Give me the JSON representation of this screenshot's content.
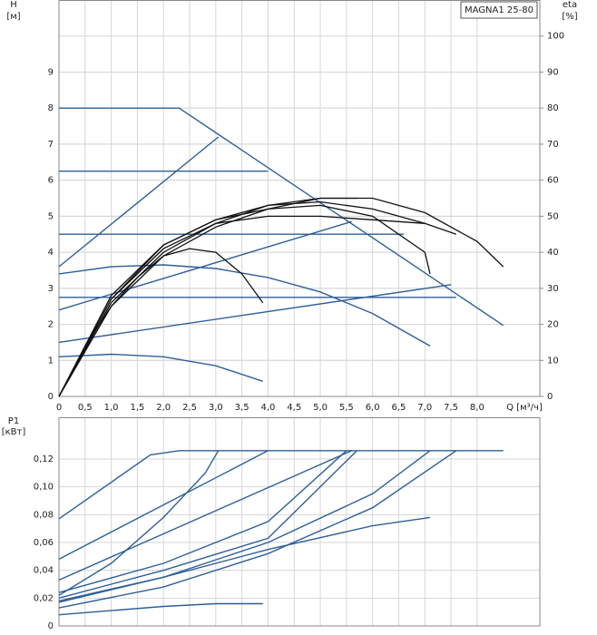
{
  "chart_data": [
    {
      "type": "line",
      "annotation": "MAGNA1 25-80",
      "ylabel": [
        "H",
        "[м]"
      ],
      "y2label": [
        "eta",
        "[%]"
      ],
      "xlabel": "Q [м³/ч]",
      "xlim": [
        0,
        9.2
      ],
      "ylim": [
        0,
        11
      ],
      "y2lim": [
        0,
        110
      ],
      "grid": true,
      "color": "#2e5f9a",
      "y2color": "#111111",
      "xticks": [
        0,
        {
          "value": 0.5,
          "label": "0,5"
        },
        {
          "value": 1,
          "label": "1,0"
        },
        {
          "value": 1.5,
          "label": "1,5"
        },
        {
          "value": 2,
          "label": "2,0"
        },
        {
          "value": 2.5,
          "label": "2,5"
        },
        {
          "value": 3,
          "label": "3,0"
        },
        {
          "value": 3.5,
          "label": "3,5"
        },
        {
          "value": 4,
          "label": "4,0"
        },
        {
          "value": 4.5,
          "label": "4,5"
        },
        {
          "value": 5,
          "label": "5,0"
        },
        {
          "value": 5.5,
          "label": "5,5"
        },
        {
          "value": 6,
          "label": "6,0"
        },
        {
          "value": 6.5,
          "label": "6,5"
        },
        {
          "value": 7,
          "label": "7,0"
        },
        {
          "value": 7.5,
          "label": "7,5"
        },
        {
          "value": 8,
          "label": "8,0"
        }
      ],
      "yticks": [
        0,
        1,
        2,
        3,
        4,
        5,
        6,
        7,
        8,
        9
      ],
      "y2ticks": [
        0,
        10,
        20,
        30,
        40,
        50,
        60,
        70,
        80,
        90,
        100
      ],
      "series": [
        {
          "x": [
            0,
            2.3,
            8.5
          ],
          "values": [
            8,
            8,
            1.97
          ]
        },
        {
          "x": [
            0,
            3.05
          ],
          "values": [
            3.6,
            7.2
          ]
        },
        {
          "x": [
            0,
            4.0
          ],
          "values": [
            6.25,
            6.25
          ]
        },
        {
          "x": [
            0,
            6.6
          ],
          "values": [
            4.5,
            4.5
          ]
        },
        {
          "x": [
            0,
            7.6
          ],
          "values": [
            2.75,
            2.75
          ]
        },
        {
          "x": [
            0,
            5.6
          ],
          "values": [
            2.4,
            4.85
          ]
        },
        {
          "x": [
            0,
            7.5
          ],
          "values": [
            1.5,
            3.1
          ]
        },
        {
          "x": [
            0,
            1,
            2,
            3,
            4,
            5,
            6,
            7.1
          ],
          "values": [
            3.4,
            3.6,
            3.65,
            3.55,
            3.3,
            2.9,
            2.3,
            1.4
          ]
        },
        {
          "x": [
            0,
            1,
            2,
            3,
            3.9
          ],
          "values": [
            1.1,
            1.17,
            1.1,
            0.85,
            0.42
          ]
        },
        {
          "axis": "y2",
          "x": [
            0,
            0.5,
            1,
            1.5,
            2,
            2.5,
            3,
            3.5,
            3.9
          ],
          "values": [
            0,
            14,
            25,
            33,
            39,
            41,
            40,
            34,
            26
          ]
        },
        {
          "axis": "y2",
          "x": [
            0,
            1,
            2,
            3,
            4,
            5,
            6,
            7,
            7.1
          ],
          "values": [
            0,
            28,
            42,
            49,
            52,
            53,
            50,
            40,
            34
          ]
        },
        {
          "axis": "y2",
          "x": [
            0,
            1,
            2,
            3,
            4,
            5,
            6,
            7,
            7.6
          ],
          "values": [
            0,
            27,
            41,
            48,
            50,
            50,
            49,
            48,
            45
          ]
        },
        {
          "axis": "y2",
          "x": [
            0,
            1,
            2,
            3,
            4,
            5,
            6,
            7,
            8,
            8.5
          ],
          "values": [
            0,
            26,
            40,
            48,
            53,
            55,
            55,
            51,
            43,
            36
          ]
        },
        {
          "axis": "y2",
          "x": [
            0,
            1,
            2,
            3,
            4,
            5,
            5.7
          ],
          "values": [
            0,
            25,
            39,
            47,
            52,
            55,
            55
          ]
        },
        {
          "axis": "y2",
          "x": [
            0,
            1,
            2,
            3,
            4,
            5,
            6,
            7
          ],
          "values": [
            0,
            27,
            42,
            49,
            53,
            54,
            52,
            48
          ]
        }
      ]
    },
    {
      "type": "line",
      "ylabel": [
        "P1",
        "[кВт]"
      ],
      "xlim": [
        0,
        9.2
      ],
      "ylim": [
        0,
        0.15
      ],
      "grid": true,
      "color": "#2e5f9a",
      "xticks": [
        0,
        0.5,
        1,
        1.5,
        2,
        2.5,
        3,
        3.5,
        4,
        4.5,
        5,
        5.5,
        6,
        6.5,
        7,
        7.5,
        8
      ],
      "yticks": [
        0,
        {
          "value": 0.02,
          "label": "0,02"
        },
        {
          "value": 0.04,
          "label": "0,04"
        },
        {
          "value": 0.06,
          "label": "0,06"
        },
        {
          "value": 0.08,
          "label": "0,08"
        },
        {
          "value": 0.1,
          "label": "0,10"
        },
        {
          "value": 0.12,
          "label": "0,12"
        }
      ],
      "series": [
        {
          "x": [
            0,
            1.75,
            2.3,
            8.5
          ],
          "values": [
            0.077,
            0.123,
            0.126,
            0.126
          ]
        },
        {
          "x": [
            0,
            4.0
          ],
          "values": [
            0.048,
            0.126
          ]
        },
        {
          "x": [
            0,
            1,
            2,
            2.8,
            3.05
          ],
          "values": [
            0.022,
            0.045,
            0.078,
            0.11,
            0.126
          ]
        },
        {
          "x": [
            0,
            2,
            4,
            5.5
          ],
          "values": [
            0.024,
            0.045,
            0.075,
            0.126
          ]
        },
        {
          "x": [
            0,
            2,
            4,
            5.7
          ],
          "values": [
            0.02,
            0.04,
            0.063,
            0.126
          ]
        },
        {
          "x": [
            0,
            5.6
          ],
          "values": [
            0.033,
            0.126
          ]
        },
        {
          "x": [
            0,
            2,
            4,
            6,
            7.1
          ],
          "values": [
            0.017,
            0.035,
            0.06,
            0.095,
            0.126
          ]
        },
        {
          "x": [
            0,
            2,
            4,
            6,
            7.6
          ],
          "values": [
            0.013,
            0.028,
            0.052,
            0.085,
            0.126
          ]
        },
        {
          "x": [
            0,
            2,
            4,
            6,
            7.1
          ],
          "values": [
            0.018,
            0.035,
            0.055,
            0.072,
            0.078
          ]
        },
        {
          "x": [
            0,
            1,
            2,
            3,
            3.9
          ],
          "values": [
            0.008,
            0.011,
            0.014,
            0.016,
            0.016
          ]
        }
      ]
    }
  ]
}
